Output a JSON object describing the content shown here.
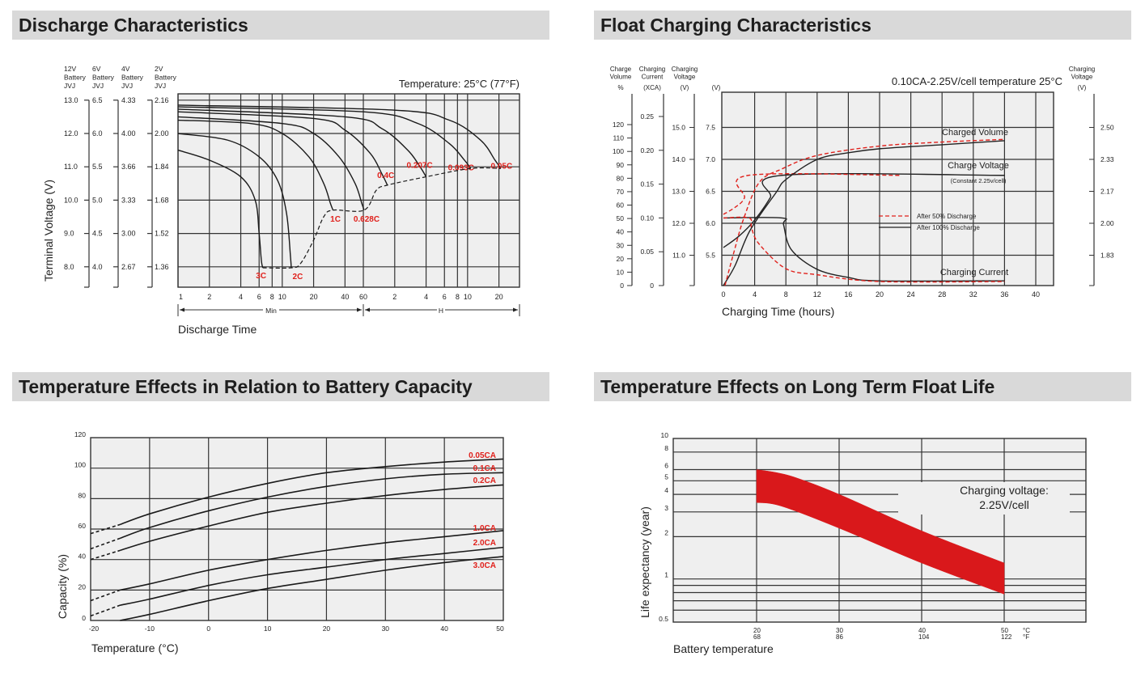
{
  "sections": {
    "discharge": "Discharge Characteristics",
    "float": "Float Charging Characteristics",
    "temp_capacity": "Temperature Effects in Relation to Battery Capacity",
    "float_life": "Temperature Effects on Long Term Float Life"
  },
  "colors": {
    "accent_red": "#e0201b",
    "plot_bg": "#efefef",
    "grid": "#333333",
    "header_bg": "#d9d9d9"
  },
  "chart_data": [
    {
      "type": "line",
      "xlabel": "Discharge Time",
      "ylabel": "Terminal Voltage (V)",
      "annotation": "Temperature: 25°C (77°F)",
      "x_scale": "log",
      "x_unit": "min",
      "x_ticks_min": [
        1,
        2,
        4,
        6,
        8,
        10,
        20,
        40,
        60,
        120,
        240,
        360,
        480,
        600,
        1200
      ],
      "x_tick_labels": [
        "1",
        "2",
        "4",
        "6",
        "8",
        "10",
        "20",
        "40",
        "60",
        "2",
        "4",
        "6",
        "8",
        "10",
        "20"
      ],
      "x_range_labels": [
        "Min",
        "H"
      ],
      "ylim_12v": [
        7.39,
        13.19
      ],
      "y_axes": [
        {
          "header": [
            "12V",
            "Battery",
            "JVJ"
          ],
          "ticks": [
            "13.0",
            "12.0",
            "11.0",
            "10.0",
            "9.0",
            "8.0"
          ]
        },
        {
          "header": [
            "6V",
            "Battery",
            "JVJ"
          ],
          "ticks": [
            "6.5",
            "6.0",
            "5.5",
            "5.0",
            "4.5",
            "4.0"
          ]
        },
        {
          "header": [
            "4V",
            "Battery",
            "JVJ"
          ],
          "ticks": [
            "4.33",
            "4.00",
            "3.66",
            "3.33",
            "3.00",
            "2.67"
          ]
        },
        {
          "header": [
            "2V",
            "Battery",
            "JVJ"
          ],
          "ticks": [
            "2.16",
            "2.00",
            "1.84",
            "1.68",
            "1.52",
            "1.36"
          ]
        }
      ],
      "y_tick_values_12v": [
        13,
        12,
        11,
        10,
        9,
        8
      ],
      "series": [
        {
          "name": "3C",
          "points": [
            [
              1,
              11.5
            ],
            [
              2,
              11.2
            ],
            [
              4,
              10.7
            ],
            [
              5.5,
              10.0
            ],
            [
              6,
              9.0
            ],
            [
              6.3,
              8.2
            ],
            [
              6.5,
              7.97
            ]
          ]
        },
        {
          "name": "2C",
          "points": [
            [
              1,
              12.0
            ],
            [
              3,
              11.8
            ],
            [
              6,
              11.3
            ],
            [
              9,
              10.6
            ],
            [
              11,
              9.6
            ],
            [
              12,
              8.3
            ],
            [
              12.2,
              7.97
            ]
          ]
        },
        {
          "name": "1C",
          "points": [
            [
              1,
              12.4
            ],
            [
              5,
              12.3
            ],
            [
              10,
              12.0
            ],
            [
              18,
              11.3
            ],
            [
              25,
              10.5
            ],
            [
              29,
              9.9
            ],
            [
              30.7,
              9.7
            ]
          ]
        },
        {
          "name": "0.628C",
          "points": [
            [
              1,
              12.5
            ],
            [
              10,
              12.3
            ],
            [
              20,
              12.0
            ],
            [
              35,
              11.3
            ],
            [
              50,
              10.5
            ],
            [
              58,
              9.9
            ],
            [
              61,
              9.7
            ]
          ]
        },
        {
          "name": "0.4C",
          "points": [
            [
              1,
              12.65
            ],
            [
              20,
              12.45
            ],
            [
              40,
              12.1
            ],
            [
              70,
              11.4
            ],
            [
              90,
              10.8
            ],
            [
              102,
              10.45
            ]
          ]
        },
        {
          "name": "0.207C",
          "points": [
            [
              1,
              12.73
            ],
            [
              40,
              12.5
            ],
            [
              90,
              12.15
            ],
            [
              160,
              11.5
            ],
            [
              210,
              11.0
            ],
            [
              240,
              10.7
            ]
          ]
        },
        {
          "name": "0.093C",
          "points": [
            [
              1,
              12.8
            ],
            [
              60,
              12.65
            ],
            [
              200,
              12.3
            ],
            [
              400,
              11.7
            ],
            [
              560,
              11.2
            ],
            [
              644,
              10.95
            ]
          ]
        },
        {
          "name": "0.05C",
          "points": [
            [
              1,
              12.85
            ],
            [
              120,
              12.7
            ],
            [
              400,
              12.4
            ],
            [
              800,
              11.8
            ],
            [
              1100,
              11.2
            ],
            [
              1250,
              10.95
            ]
          ]
        }
      ],
      "cutoff_line": [
        [
          6.5,
          7.97
        ],
        [
          12.2,
          7.97
        ],
        [
          15,
          8.1
        ],
        [
          20,
          8.8
        ],
        [
          25,
          9.5
        ],
        [
          30.7,
          9.7
        ],
        [
          61,
          9.7
        ],
        [
          80,
          10.3
        ],
        [
          102,
          10.45
        ],
        [
          240,
          10.7
        ],
        [
          644,
          10.95
        ],
        [
          1250,
          10.95
        ]
      ]
    },
    {
      "type": "line",
      "title": "0.10CA-2.25V/cell  temperature 25°C",
      "xlabel": "Charging Time (hours)",
      "xlim": [
        0,
        42.5
      ],
      "x_ticks": [
        0,
        4,
        8,
        12,
        16,
        20,
        24,
        28,
        32,
        36,
        40
      ],
      "axes": {
        "charge_volume": {
          "header": [
            "Charge",
            "Volume",
            "%"
          ],
          "ticks": [
            0,
            10,
            20,
            30,
            40,
            50,
            60,
            70,
            80,
            90,
            100,
            110,
            120
          ]
        },
        "charging_current": {
          "header": [
            "Charging",
            "Current",
            "(XCA)"
          ],
          "ticks": [
            "0",
            "0.05",
            "0.10",
            "0.15",
            "0.20",
            "0.25"
          ]
        },
        "charging_voltage_12v": {
          "header": [
            "Charging",
            "Voltage",
            "(V)"
          ],
          "ticks": [
            "15.0",
            "14.0",
            "13.0",
            "12.0",
            "11.0"
          ]
        },
        "charging_voltage_6v": {
          "header": [
            "(V)"
          ],
          "ticks": [
            "7.5",
            "7.0",
            "6.5",
            "6.0",
            "5.5"
          ]
        },
        "charging_voltage_cell": {
          "header": [
            "Charging",
            "Voltage",
            "(V)"
          ],
          "ticks": [
            "2.50",
            "2.33",
            "2.17",
            "2.00",
            "1.83"
          ]
        }
      },
      "ylim_6v": [
        5.0,
        8.05
      ],
      "curve_labels": {
        "volume": "Charged Volume",
        "voltage": "Charge Voltage",
        "voltage_note": "(Constant 2.25v/cell)",
        "current": "Charging Current"
      },
      "legend": [
        {
          "name": "After  50% Discharge",
          "style": "dashed",
          "color": "#e0201b"
        },
        {
          "name": "After 100% Discharge",
          "style": "solid",
          "color": "#222222"
        }
      ],
      "series": [
        {
          "group": "voltage",
          "legend": 1,
          "unit": "V",
          "points": [
            [
              0,
              5.62
            ],
            [
              2,
              5.8
            ],
            [
              4,
              6.05
            ],
            [
              6,
              6.4
            ],
            [
              7.5,
              6.75
            ],
            [
              36,
              6.75
            ]
          ]
        },
        {
          "group": "voltage",
          "legend": 0,
          "unit": "V",
          "points": [
            [
              0,
              6.14
            ],
            [
              1.5,
              6.25
            ],
            [
              2.7,
              6.4
            ],
            [
              3.2,
              6.75
            ],
            [
              22.7,
              6.75
            ]
          ]
        },
        {
          "group": "current",
          "legend": 1,
          "unit": "XCA",
          "points": [
            [
              0,
              0.1
            ],
            [
              7.5,
              0.1
            ],
            [
              7.7,
              0.09
            ],
            [
              8.7,
              0.053
            ],
            [
              12,
              0.024
            ],
            [
              16,
              0.012
            ],
            [
              20,
              0.007
            ],
            [
              36,
              0.007
            ]
          ]
        },
        {
          "group": "current",
          "legend": 0,
          "unit": "XCA",
          "points": [
            [
              0,
              0.1
            ],
            [
              3.3,
              0.1
            ],
            [
              3.6,
              0.085
            ],
            [
              4.6,
              0.061
            ],
            [
              8,
              0.025
            ],
            [
              12,
              0.016
            ],
            [
              20,
              0.006
            ],
            [
              36,
              0.006
            ]
          ]
        },
        {
          "group": "volume",
          "legend": 1,
          "unit": "%",
          "points": [
            [
              0,
              0
            ],
            [
              1.5,
              15
            ],
            [
              3.4,
              41
            ],
            [
              6.7,
              69
            ],
            [
              8,
              79
            ],
            [
              12,
              94
            ],
            [
              16,
              99
            ],
            [
              20,
              102
            ],
            [
              28,
              105
            ],
            [
              36,
              108
            ]
          ]
        },
        {
          "group": "volume",
          "legend": 0,
          "unit": "%",
          "points": [
            [
              0.2,
              0
            ],
            [
              1.35,
              25
            ],
            [
              2.6,
              50
            ],
            [
              4.6,
              77
            ],
            [
              7.5,
              87
            ],
            [
              12,
              97
            ],
            [
              20,
              104
            ],
            [
              28,
              107
            ],
            [
              36,
              109
            ]
          ]
        }
      ]
    },
    {
      "type": "line",
      "xlabel": "Temperature (°C)",
      "ylabel": "Capacity (%)",
      "xlim": [
        -20,
        50
      ],
      "ylim": [
        0,
        120
      ],
      "x_ticks": [
        "-20",
        "-10",
        "0",
        "10",
        "20",
        "30",
        "40",
        "50"
      ],
      "y_ticks": [
        "120",
        "100",
        "80",
        "60",
        "40",
        "20",
        "0"
      ],
      "dashed_below_c": -15,
      "series": [
        {
          "name": "0.05CA",
          "points": [
            [
              -20,
              57
            ],
            [
              -15,
              63
            ],
            [
              -10,
              70
            ],
            [
              0,
              81
            ],
            [
              10,
              90
            ],
            [
              20,
              97
            ],
            [
              30,
              101
            ],
            [
              40,
              104
            ],
            [
              50,
              106
            ]
          ]
        },
        {
          "name": "0.1CA",
          "points": [
            [
              -20,
              47
            ],
            [
              -15,
              54
            ],
            [
              -10,
              61
            ],
            [
              0,
              72
            ],
            [
              10,
              81
            ],
            [
              20,
              88
            ],
            [
              30,
              93
            ],
            [
              40,
              96
            ],
            [
              50,
              97
            ]
          ]
        },
        {
          "name": "0.2CA",
          "points": [
            [
              -20,
              40
            ],
            [
              -15,
              46
            ],
            [
              -10,
              52
            ],
            [
              0,
              62
            ],
            [
              10,
              71
            ],
            [
              20,
              77
            ],
            [
              30,
              82
            ],
            [
              40,
              86
            ],
            [
              50,
              89
            ]
          ]
        },
        {
          "name": "1.0CA",
          "points": [
            [
              -20,
              13
            ],
            [
              -15,
              20
            ],
            [
              -10,
              24
            ],
            [
              0,
              33
            ],
            [
              10,
              40
            ],
            [
              20,
              46
            ],
            [
              30,
              51
            ],
            [
              40,
              55
            ],
            [
              50,
              59
            ]
          ]
        },
        {
          "name": "2.0CA",
          "points": [
            [
              -20,
              3
            ],
            [
              -15,
              10
            ],
            [
              -10,
              14
            ],
            [
              0,
              23
            ],
            [
              10,
              30
            ],
            [
              20,
              35
            ],
            [
              30,
              40
            ],
            [
              40,
              44
            ],
            [
              50,
              48
            ]
          ]
        },
        {
          "name": "3.0CA",
          "points": [
            [
              -15,
              0
            ],
            [
              -10,
              4
            ],
            [
              0,
              13
            ],
            [
              10,
              21
            ],
            [
              20,
              27
            ],
            [
              30,
              33
            ],
            [
              40,
              38
            ],
            [
              50,
              42
            ]
          ]
        }
      ]
    },
    {
      "type": "area",
      "xlabel": "Battery temperature",
      "ylabel": "Life expectancy (year)",
      "y_scale": "log",
      "xlim": [
        10,
        60
      ],
      "ylim": [
        0.5,
        10
      ],
      "x_ticks_c": [
        "20",
        "30",
        "40",
        "50"
      ],
      "x_ticks_f": [
        "68",
        "86",
        "104",
        "122"
      ],
      "x_units": [
        "°C",
        "°F"
      ],
      "y_ticks": [
        "10",
        "8",
        "6",
        "5",
        "4",
        "3",
        "2",
        "1",
        "0.5"
      ],
      "y_tick_values": [
        10,
        8,
        6,
        5,
        4,
        3,
        2,
        1,
        0.5
      ],
      "y_minor_lines": [
        0.9,
        0.8,
        0.7,
        0.6
      ],
      "annotation": [
        "Charging voltage:",
        "2.25V/cell"
      ],
      "band": {
        "upper": [
          [
            20,
            6.0
          ],
          [
            22.5,
            5.7
          ],
          [
            25,
            5.2
          ],
          [
            30,
            4.0
          ],
          [
            40,
            2.2
          ],
          [
            50,
            1.3
          ]
        ],
        "lower": [
          [
            20,
            3.5
          ],
          [
            23,
            3.3
          ],
          [
            30,
            2.3
          ],
          [
            40,
            1.3
          ],
          [
            50,
            0.78
          ]
        ]
      }
    }
  ]
}
